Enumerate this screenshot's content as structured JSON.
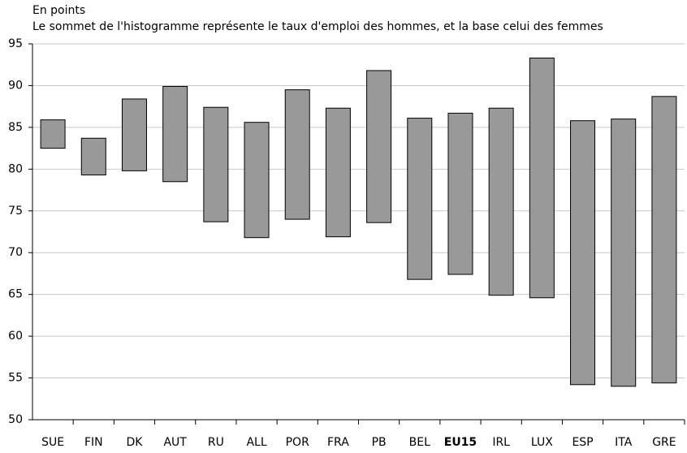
{
  "chart_data": {
    "type": "range-bar",
    "title": "En points",
    "subtitle": "Le sommet de l'histogramme représente le taux d'emploi des hommes, et la base celui des femmes",
    "categories": [
      "SUE",
      "FIN",
      "DK",
      "AUT",
      "RU",
      "ALL",
      "POR",
      "FRA",
      "PB",
      "BEL",
      "EU15",
      "IRL",
      "LUX",
      "ESP",
      "ITA",
      "GRE"
    ],
    "high": [
      85.9,
      83.7,
      88.4,
      89.9,
      87.4,
      85.6,
      89.5,
      87.3,
      91.8,
      86.1,
      86.7,
      87.3,
      93.3,
      85.8,
      86.0,
      88.7
    ],
    "low": [
      82.5,
      79.3,
      79.8,
      78.5,
      73.7,
      71.8,
      74.0,
      71.9,
      73.6,
      66.8,
      67.4,
      64.9,
      64.6,
      54.2,
      54.0,
      54.4
    ],
    "color": "#999999",
    "highlight_index": 10,
    "ylim": [
      50,
      95
    ],
    "yticks": [
      50,
      55,
      60,
      65,
      70,
      75,
      80,
      85,
      90,
      95
    ],
    "grid": true
  }
}
